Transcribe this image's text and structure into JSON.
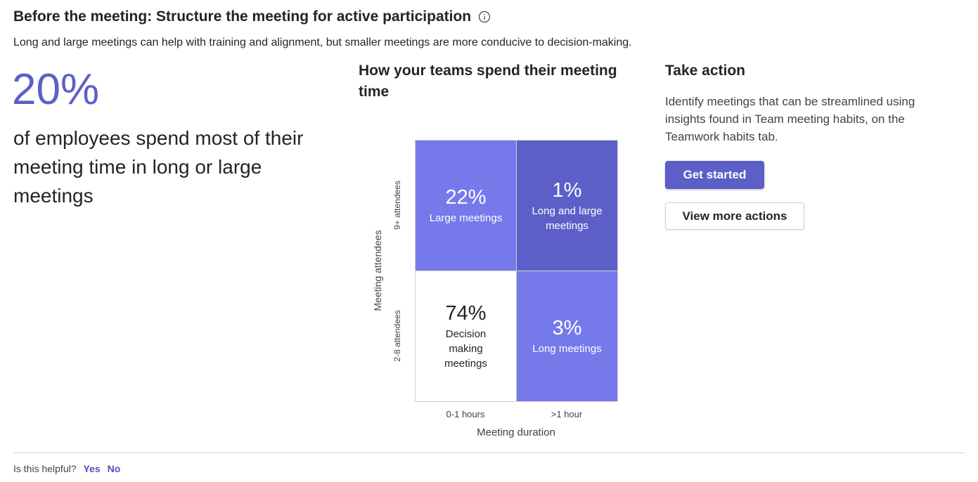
{
  "header": {
    "title": "Before the meeting: Structure the meeting for active participation",
    "info_icon": "info-icon",
    "subtitle": "Long and large meetings can help with training and alignment, but smaller meetings are more conducive to decision-making."
  },
  "insight": {
    "stat": "20%",
    "description": "of employees spend most of their meeting time in long or large meetings",
    "accent_color": "#5b5fc7"
  },
  "chart": {
    "title": "How your teams spend their meeting time",
    "cells": {
      "large": {
        "pct": "22%",
        "label": "Large meetings"
      },
      "long_large": {
        "pct": "1%",
        "label": "Long and large meetings"
      },
      "decision": {
        "pct": "74%",
        "label": "Decision making meetings"
      },
      "long": {
        "pct": "3%",
        "label": "Long meetings"
      }
    }
  },
  "chart_data": {
    "type": "heatmap",
    "title": "How your teams spend their meeting time",
    "xlabel": "Meeting duration",
    "ylabel": "Meeting attendees",
    "x": [
      "0-1 hours",
      ">1 hour"
    ],
    "y": [
      "9+ attendees",
      "2-8 attendees"
    ],
    "values": [
      [
        22,
        1
      ],
      [
        74,
        3
      ]
    ],
    "labels": [
      [
        "Large meetings",
        "Long and large meetings"
      ],
      [
        "Decision making meetings",
        "Long meetings"
      ]
    ],
    "colors": {
      "light": "#7679ea",
      "dark": "#5b5fc7",
      "white": "#ffffff"
    }
  },
  "action": {
    "title": "Take action",
    "description": "Identify meetings that can be streamlined using insights found in Team meeting habits, on the Teamwork habits tab.",
    "primary_label": "Get started",
    "secondary_label": "View more actions"
  },
  "feedback": {
    "question": "Is this helpful?",
    "yes": "Yes",
    "no": "No"
  }
}
